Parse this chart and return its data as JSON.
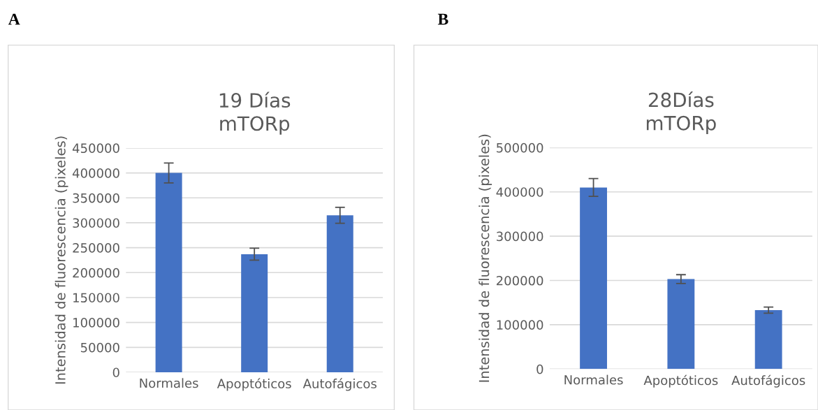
{
  "chart_data": [
    {
      "type": "bar",
      "title": "19 Días\nmTORp",
      "ylabel": "Intensidad de fluorescencia (pixeles)",
      "categories": [
        "Normales",
        "Apoptóticos",
        "Autofágicos"
      ],
      "values": [
        400000,
        237000,
        315000
      ],
      "errors": [
        20000,
        12000,
        16000
      ],
      "color": "#4472c4",
      "ylim": [
        0,
        450000
      ],
      "yticks": [
        0,
        50000,
        100000,
        150000,
        200000,
        250000,
        300000,
        350000,
        400000,
        450000
      ],
      "grid": "y",
      "annotations": [
        "A"
      ]
    },
    {
      "type": "bar",
      "title": "28Días\nmTORp",
      "ylabel": "Intensidad de fluorescencia (pixeles)",
      "categories": [
        "Normales",
        "Apoptóticos",
        "Autofágicos"
      ],
      "values": [
        410000,
        203000,
        133000
      ],
      "errors": [
        20000,
        10000,
        7000
      ],
      "color": "#4472c4",
      "ylim": [
        0,
        500000
      ],
      "yticks": [
        0,
        100000,
        200000,
        300000,
        400000,
        500000
      ],
      "grid": "y",
      "annotations": [
        "B"
      ]
    }
  ]
}
